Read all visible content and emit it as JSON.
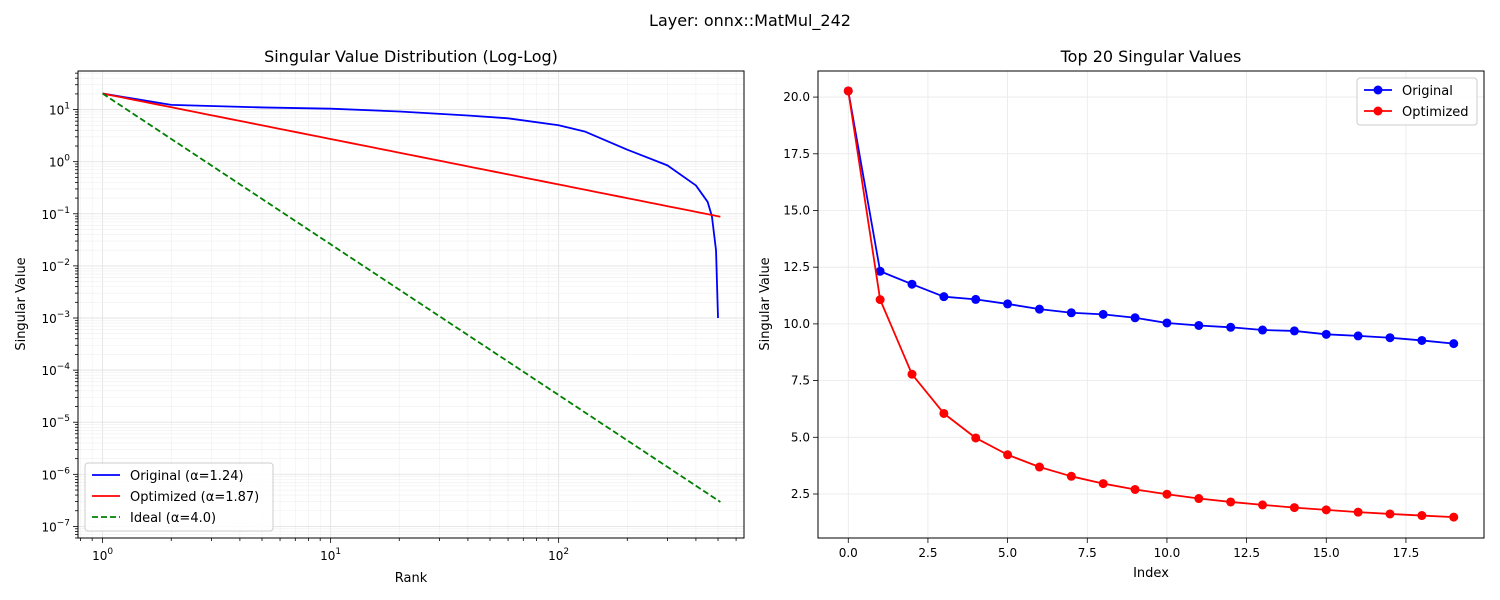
{
  "suptitle": "Layer: onnx::MatMul_242",
  "chart_data": [
    {
      "type": "line",
      "title": "Singular Value Distribution (Log-Log)",
      "xlabel": "Rank",
      "ylabel": "Singular Value",
      "xscale": "log",
      "yscale": "log",
      "xlim": [
        0.78,
        650
      ],
      "ylim": [
        6e-08,
        55
      ],
      "xticks": [
        1,
        10,
        100
      ],
      "xtick_labels": [
        {
          "base": "10",
          "exp": "0"
        },
        {
          "base": "10",
          "exp": "1"
        },
        {
          "base": "10",
          "exp": "2"
        }
      ],
      "yticks": [
        1e-07,
        1e-06,
        1e-05,
        0.0001,
        0.001,
        0.01,
        0.1,
        1,
        10
      ],
      "ytick_labels": [
        {
          "base": "10",
          "exp": "−7"
        },
        {
          "base": "10",
          "exp": "−6"
        },
        {
          "base": "10",
          "exp": "−5"
        },
        {
          "base": "10",
          "exp": "−4"
        },
        {
          "base": "10",
          "exp": "−3"
        },
        {
          "base": "10",
          "exp": "−2"
        },
        {
          "base": "10",
          "exp": "−1"
        },
        {
          "base": "10",
          "exp": "0"
        },
        {
          "base": "10",
          "exp": "1"
        }
      ],
      "grid": true,
      "legend_position": "lower-left",
      "series": [
        {
          "name": "Original (α=1.24)",
          "color": "#0000ff",
          "dash": "solid",
          "points": [
            [
              1,
              20.3
            ],
            [
              2,
              12.3
            ],
            [
              5,
              11.0
            ],
            [
              10,
              10.4
            ],
            [
              20,
              9.2
            ],
            [
              40,
              7.7
            ],
            [
              60,
              6.8
            ],
            [
              100,
              5.0
            ],
            [
              130,
              3.8
            ],
            [
              200,
              1.7
            ],
            [
              300,
              0.85
            ],
            [
              400,
              0.35
            ],
            [
              450,
              0.17
            ],
            [
              470,
              0.09
            ],
            [
              490,
              0.02
            ],
            [
              500,
              0.001
            ]
          ]
        },
        {
          "name": "Optimized (α=1.87)",
          "color": "#ff0000",
          "dash": "solid",
          "points": [
            [
              1,
              20.3
            ],
            [
              512,
              0.0879
            ]
          ]
        },
        {
          "name": "Ideal (α=4.0)",
          "color": "#008000",
          "dash": "dashed",
          "points": [
            [
              1,
              20.3
            ],
            [
              512,
              2.95e-07
            ]
          ]
        }
      ]
    },
    {
      "type": "line",
      "title": "Top 20 Singular Values",
      "xlabel": "Index",
      "ylabel": "Singular Value",
      "xlim": [
        -0.95,
        19.95
      ],
      "ylim": [
        0.56,
        21.15
      ],
      "xticks": [
        0,
        2.5,
        5,
        7.5,
        10,
        12.5,
        15,
        17.5
      ],
      "xtick_labels": [
        "0.0",
        "2.5",
        "5.0",
        "7.5",
        "10.0",
        "12.5",
        "15.0",
        "17.5"
      ],
      "yticks": [
        2.5,
        5,
        7.5,
        10,
        12.5,
        15,
        17.5,
        20
      ],
      "ytick_labels": [
        "2.5",
        "5.0",
        "7.5",
        "10.0",
        "12.5",
        "15.0",
        "17.5",
        "20.0"
      ],
      "grid": true,
      "legend_position": "upper-right",
      "x": [
        0,
        1,
        2,
        3,
        4,
        5,
        6,
        7,
        8,
        9,
        10,
        11,
        12,
        13,
        14,
        15,
        16,
        17,
        18,
        19
      ],
      "series": [
        {
          "name": "Original",
          "color": "#0000ff",
          "marker": "circle",
          "values": [
            20.27,
            12.32,
            11.75,
            11.2,
            11.08,
            10.88,
            10.65,
            10.49,
            10.42,
            10.27,
            10.04,
            9.93,
            9.85,
            9.73,
            9.69,
            9.54,
            9.47,
            9.39,
            9.27,
            9.13
          ]
        },
        {
          "name": "Optimized",
          "color": "#ff0000",
          "marker": "circle",
          "values": [
            20.27,
            11.07,
            7.78,
            6.05,
            4.97,
            4.23,
            3.69,
            3.28,
            2.96,
            2.7,
            2.49,
            2.3,
            2.15,
            2.02,
            1.9,
            1.8,
            1.7,
            1.62,
            1.55,
            1.48
          ]
        }
      ]
    }
  ]
}
